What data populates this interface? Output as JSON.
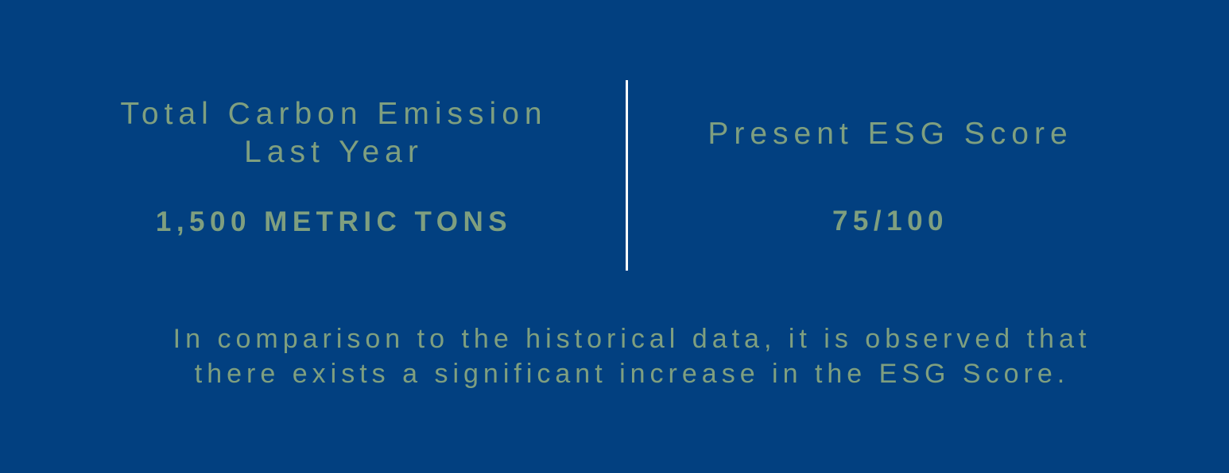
{
  "colors": {
    "background": "#024080",
    "text": "#7f9f7f",
    "divider": "#ffffff"
  },
  "left_metric": {
    "label": "Total Carbon Emission\nLast Year",
    "value": "1,500 METRIC TONS"
  },
  "right_metric": {
    "label": "Present ESG Score",
    "value": "75/100"
  },
  "note": "In comparison to the historical data, it is observed that\nthere exists a significant increase in the ESG Score."
}
